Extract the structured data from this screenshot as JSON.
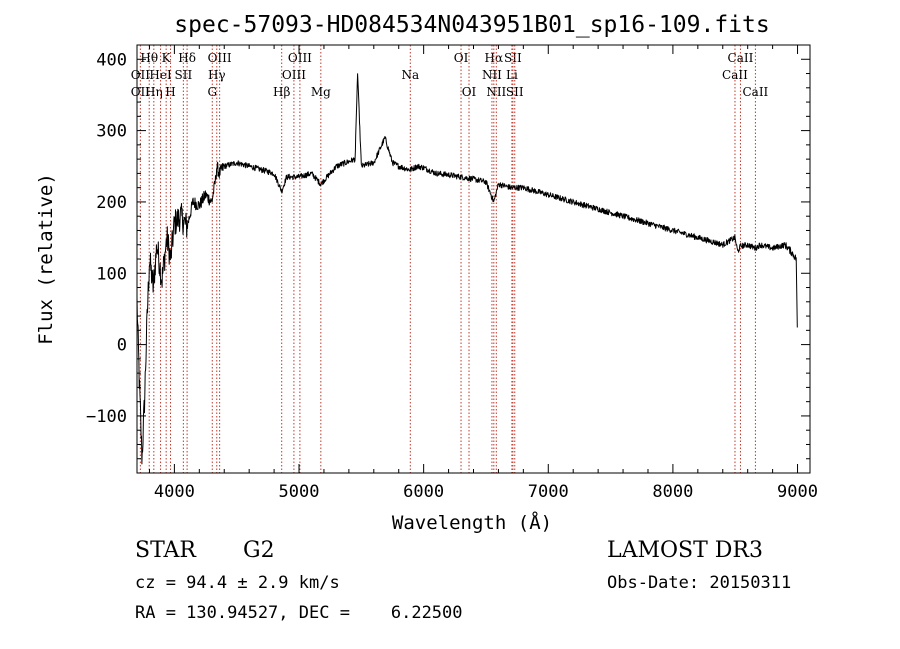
{
  "chart_data": {
    "type": "line",
    "title": "spec-57093-HD084534N043951B01_sp16-109.fits",
    "xlabel": "Wavelength (Å)",
    "ylabel": "Flux (relative)",
    "xlim": [
      3700,
      9100
    ],
    "ylim": [
      -180,
      420
    ],
    "x_ticks": [
      4000,
      5000,
      6000,
      7000,
      8000,
      9000
    ],
    "x_tick_labels": [
      "4000",
      "5000",
      "6000",
      "7000",
      "8000",
      "9000"
    ],
    "y_ticks": [
      -100,
      0,
      100,
      200,
      300,
      400
    ],
    "y_tick_labels": [
      "−100",
      "0",
      "100",
      "200",
      "300",
      "400"
    ],
    "line_color": "#000000",
    "marker_color": "#c0392b",
    "spectrum_anchor_points": {
      "x": [
        3700,
        3720,
        3740,
        3760,
        3780,
        3800,
        3830,
        3860,
        3900,
        3940,
        3970,
        4000,
        4050,
        4101,
        4150,
        4200,
        4250,
        4300,
        4330,
        4340,
        4360,
        4400,
        4500,
        4600,
        4700,
        4800,
        4861,
        4900,
        5000,
        5100,
        5175,
        5300,
        5450,
        5470,
        5500,
        5600,
        5690,
        5750,
        5800,
        5890,
        5950,
        6000,
        6100,
        6200,
        6300,
        6400,
        6500,
        6563,
        6600,
        6700,
        6800,
        6900,
        7000,
        7200,
        7400,
        7600,
        7800,
        8000,
        8200,
        8400,
        8498,
        8520,
        8542,
        8600,
        8662,
        8700,
        8800,
        8900,
        8950,
        8990,
        9000
      ],
      "y": [
        60,
        -60,
        -160,
        -80,
        30,
        120,
        80,
        140,
        90,
        150,
        120,
        170,
        180,
        165,
        200,
        195,
        210,
        200,
        230,
        250,
        240,
        250,
        255,
        250,
        245,
        240,
        215,
        235,
        235,
        240,
        225,
        250,
        260,
        380,
        250,
        255,
        290,
        255,
        250,
        245,
        250,
        248,
        240,
        238,
        235,
        232,
        228,
        200,
        225,
        220,
        220,
        215,
        210,
        200,
        190,
        180,
        170,
        160,
        150,
        140,
        150,
        130,
        138,
        140,
        135,
        140,
        135,
        140,
        130,
        120,
        0
      ]
    },
    "line_markers": [
      {
        "label": "Hθ",
        "wavelength": 3798,
        "row": 0
      },
      {
        "label": "OII",
        "wavelength": 3727,
        "row": 1
      },
      {
        "label": "OII",
        "wavelength": 3727,
        "row": 2
      },
      {
        "label": "Hη",
        "wavelength": 3835,
        "row": 2
      },
      {
        "label": "HeI",
        "wavelength": 3889,
        "row": 1
      },
      {
        "label": "K",
        "wavelength": 3934,
        "row": 0
      },
      {
        "label": "H",
        "wavelength": 3969,
        "row": 2
      },
      {
        "label": "SII",
        "wavelength": 4072,
        "row": 1
      },
      {
        "label": "Hδ",
        "wavelength": 4102,
        "row": 0
      },
      {
        "label": "OIII",
        "wavelength": 4363,
        "row": 0
      },
      {
        "label": "Hγ",
        "wavelength": 4340,
        "row": 1
      },
      {
        "label": "G",
        "wavelength": 4304,
        "row": 2
      },
      {
        "label": "Hβ",
        "wavelength": 4861,
        "row": 2
      },
      {
        "label": "OIII",
        "wavelength": 5007,
        "row": 0
      },
      {
        "label": "OIII",
        "wavelength": 4959,
        "row": 1
      },
      {
        "label": "Mg",
        "wavelength": 5175,
        "row": 2
      },
      {
        "label": "Na",
        "wavelength": 5893,
        "row": 1
      },
      {
        "label": "OI",
        "wavelength": 6300,
        "row": 0
      },
      {
        "label": "OI",
        "wavelength": 6364,
        "row": 2
      },
      {
        "label": "Hα",
        "wavelength": 6563,
        "row": 0
      },
      {
        "label": "NII",
        "wavelength": 6548,
        "row": 1
      },
      {
        "label": "NII",
        "wavelength": 6583,
        "row": 2
      },
      {
        "label": "SII",
        "wavelength": 6716,
        "row": 0
      },
      {
        "label": "Li",
        "wavelength": 6708,
        "row": 1
      },
      {
        "label": "SII",
        "wavelength": 6731,
        "row": 2
      },
      {
        "label": "CaII",
        "wavelength": 8542,
        "row": 0
      },
      {
        "label": "CaII",
        "wavelength": 8498,
        "row": 1
      },
      {
        "label": "CaII",
        "wavelength": 8662,
        "row": 2
      }
    ]
  },
  "info": {
    "class_type": "STAR",
    "subclass": "G2",
    "survey": "LAMOST DR3",
    "cz_line": "cz = 94.4 ± 2.9 km/s",
    "obs_date_line": "Obs-Date: 20150311",
    "coords_line": "RA = 130.94527, DEC =    6.22500"
  }
}
